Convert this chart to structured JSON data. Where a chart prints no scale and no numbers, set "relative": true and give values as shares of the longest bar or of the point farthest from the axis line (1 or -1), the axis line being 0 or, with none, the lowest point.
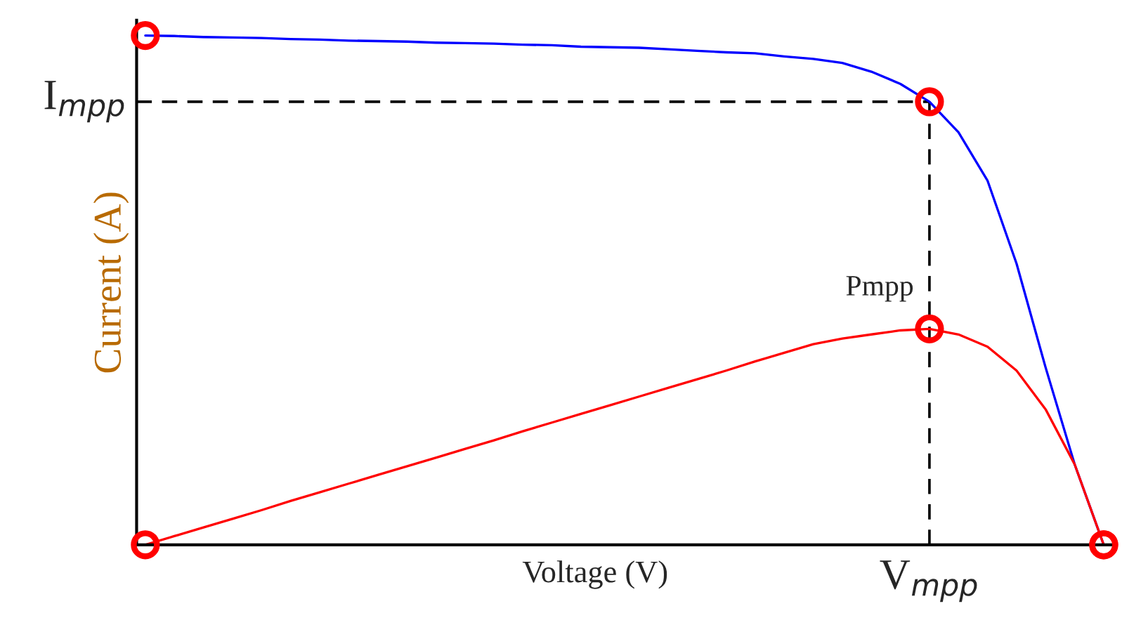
{
  "chart_data": {
    "type": "line",
    "relative": true,
    "xlabel": "Voltage (V)",
    "ylabel": "Current (A)",
    "categories": [
      null,
      null,
      null,
      null,
      null,
      null,
      null,
      null,
      null,
      null,
      null,
      null,
      null,
      null,
      null,
      null,
      null,
      null,
      null,
      null,
      null,
      null,
      null,
      null,
      null,
      null,
      null,
      null,
      null,
      null,
      null,
      null,
      null,
      null
    ],
    "series": [
      {
        "color": "#0000ff",
        "values": [
          1,
          0.999,
          0.997,
          0.996,
          0.995,
          0.993,
          0.992,
          0.99,
          0.989,
          0.988,
          0.986,
          0.985,
          0.984,
          0.982,
          0.981,
          0.978,
          0.977,
          0.976,
          0.973,
          0.97,
          0.967,
          0.965,
          0.959,
          0.954,
          0.946,
          0.929,
          0.905,
          0.87,
          0.81,
          0.715,
          0.552,
          0.348,
          0.158,
          0
        ]
      },
      {
        "color": "#ff0000",
        "values": [
          0,
          0.017,
          0.034,
          0.051,
          0.068,
          0.086,
          0.103,
          0.12,
          0.137,
          0.154,
          0.171,
          0.188,
          0.205,
          0.223,
          0.24,
          0.257,
          0.274,
          0.291,
          0.308,
          0.325,
          0.342,
          0.36,
          0.377,
          0.394,
          0.405,
          0.413,
          0.421,
          0.424,
          0.413,
          0.389,
          0.342,
          0.266,
          0.158,
          0
        ]
      }
    ],
    "ref_lines": [
      {
        "axis": "y",
        "value": 0.87,
        "label": "I$_{mpp}$",
        "line_style": "dashed",
        "color": "#000000"
      }
    ],
    "annotations": [
      "Pmpp",
      "V$_{mpp}$"
    ],
    "legend": false
  }
}
